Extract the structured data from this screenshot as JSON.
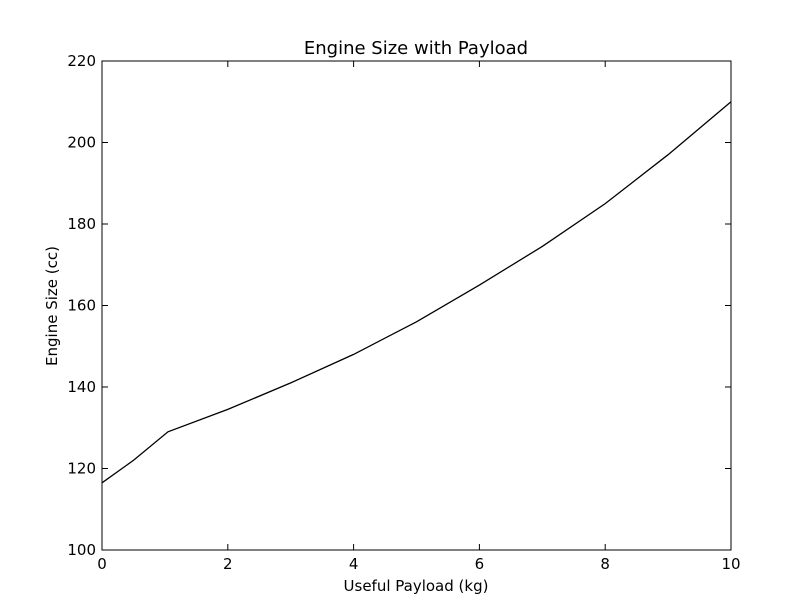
{
  "chart_data": {
    "type": "line",
    "title": "Engine Size with Payload",
    "xlabel": "Useful Payload (kg)",
    "ylabel": "Engine Size (cc)",
    "xlim": [
      0,
      10
    ],
    "ylim": [
      100,
      220
    ],
    "xticks": [
      "0",
      "2",
      "4",
      "6",
      "8",
      "10"
    ],
    "yticks": [
      "100",
      "120",
      "140",
      "160",
      "180",
      "200",
      "220"
    ],
    "grid": false,
    "series": [
      {
        "color": "#000000",
        "x": [
          0,
          0.5,
          1.05,
          2,
          3,
          4,
          5,
          6,
          7,
          8,
          9,
          10
        ],
        "y": [
          116.5,
          122,
          129,
          134.5,
          141,
          148,
          156,
          165,
          174.5,
          185,
          197,
          210
        ]
      }
    ]
  }
}
